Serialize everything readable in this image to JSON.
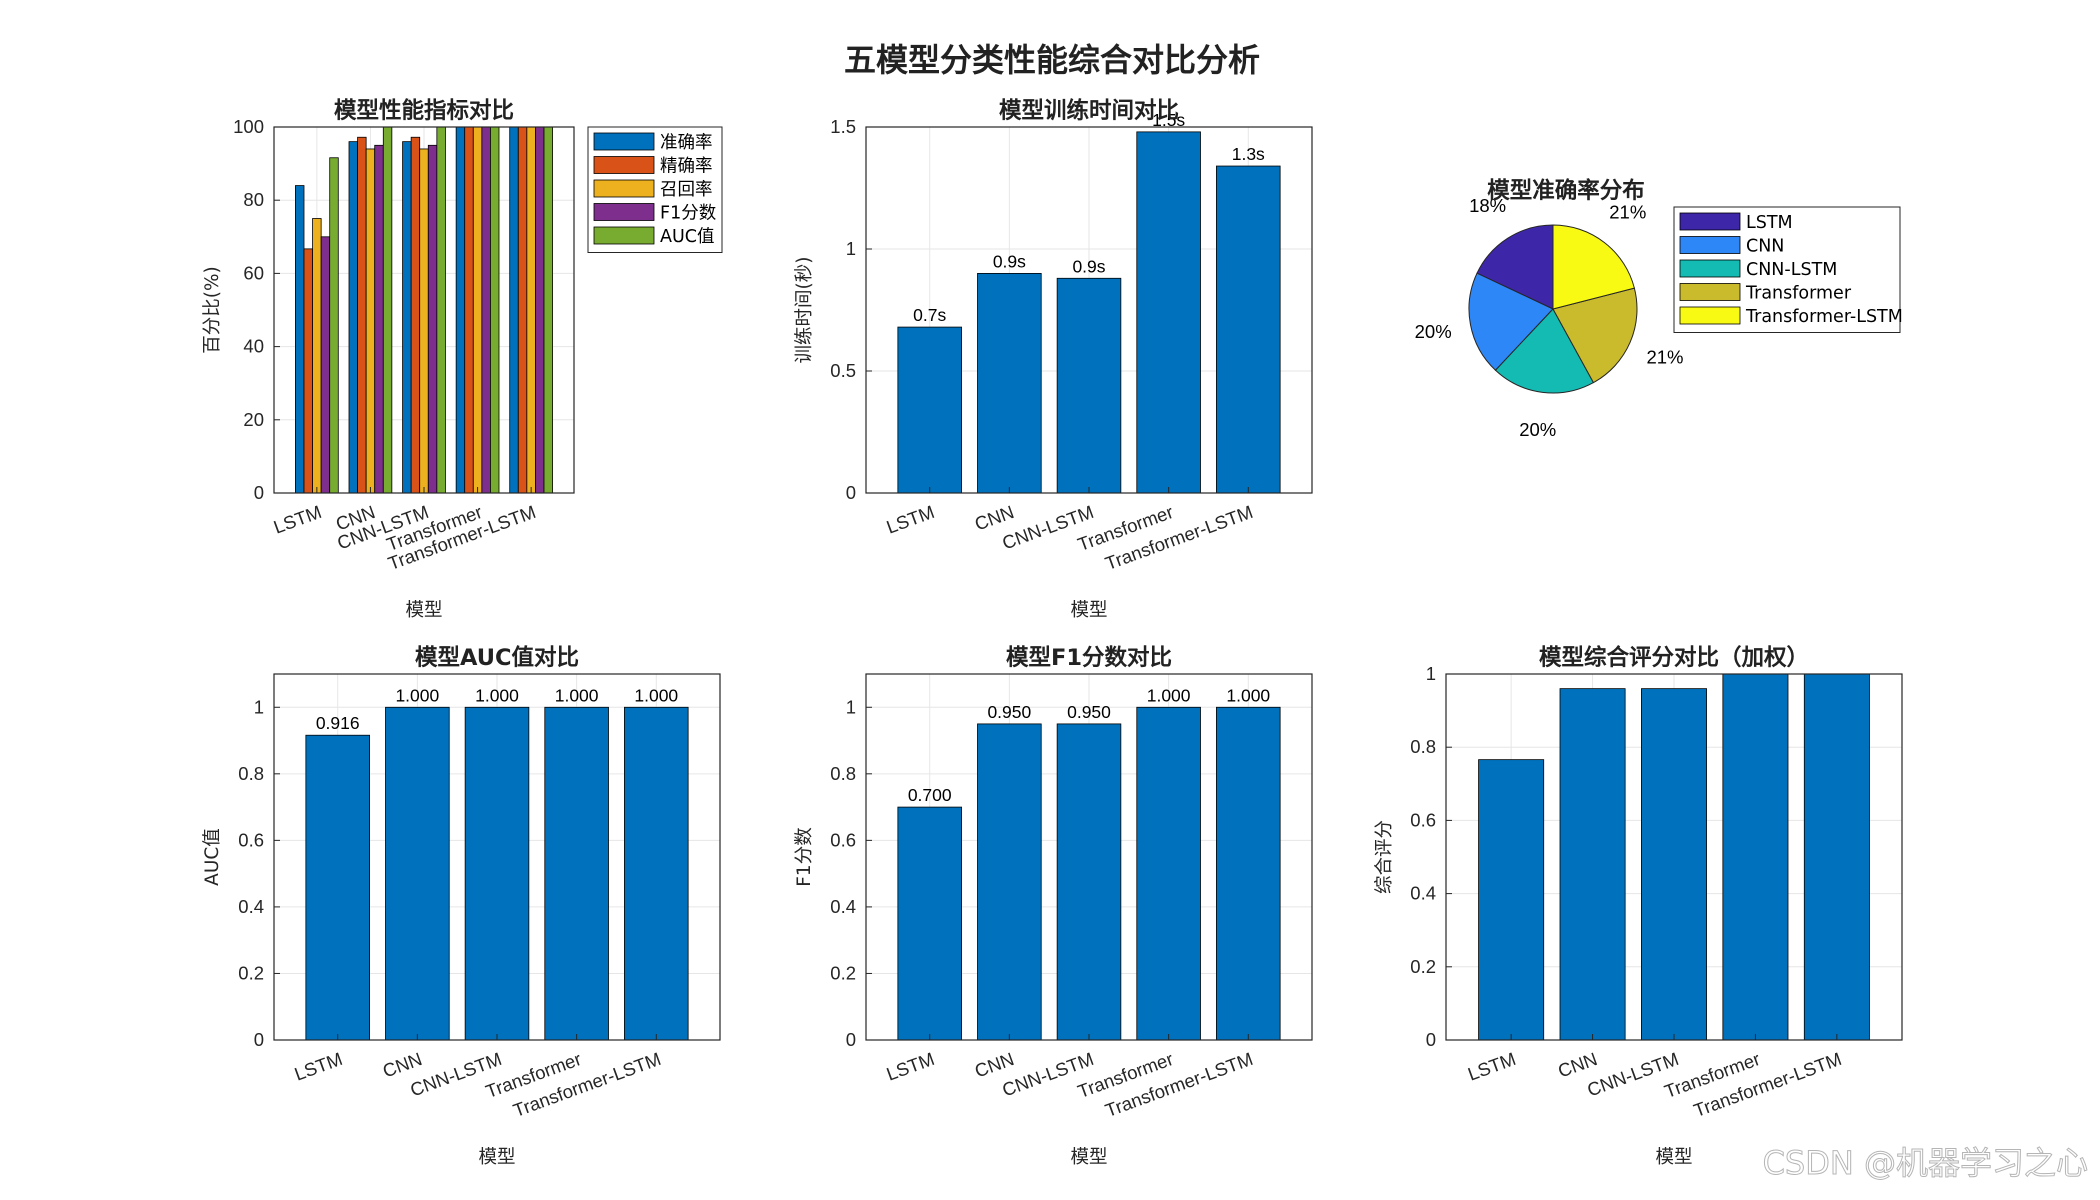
{
  "suptitle": "五模型分类性能综合对比分析",
  "watermark": "CSDN @机器学习之心",
  "chart_data": [
    {
      "type": "bar",
      "title": "模型性能指标对比",
      "xlabel": "模型",
      "ylabel": "百分比(%)",
      "ylim": [
        0,
        100
      ],
      "yticks": [
        0,
        20,
        40,
        60,
        80,
        100
      ],
      "categories": [
        "LSTM",
        "CNN",
        "CNN-LSTM",
        "Transformer",
        "Transformer-LSTM"
      ],
      "legend_position": "outside-top-right",
      "series": [
        {
          "name": "准确率",
          "color": "#0072BD",
          "values": [
            84,
            96,
            96,
            100,
            100
          ]
        },
        {
          "name": "精确率",
          "color": "#D95319",
          "values": [
            66.7,
            97.2,
            97.2,
            100,
            100
          ]
        },
        {
          "name": "召回率",
          "color": "#EDB120",
          "values": [
            75,
            94,
            94,
            100,
            100
          ]
        },
        {
          "name": "F1分数",
          "color": "#7E2F8E",
          "values": [
            70,
            95,
            95,
            100,
            100
          ]
        },
        {
          "name": "AUC值",
          "color": "#77AC30",
          "values": [
            91.6,
            100,
            100,
            100,
            100
          ]
        }
      ],
      "grid": true
    },
    {
      "type": "bar",
      "title": "模型训练时间对比",
      "xlabel": "",
      "xlabel_under": "模型",
      "ylabel": "训练时间(秒)",
      "ylim": [
        0,
        1.5
      ],
      "yticks": [
        0,
        0.5,
        1,
        1.5
      ],
      "categories": [
        "LSTM",
        "CNN",
        "CNN-LSTM",
        "Transformer",
        "Transformer-LSTM"
      ],
      "values": [
        0.68,
        0.9,
        0.88,
        1.48,
        1.34
      ],
      "data_labels": [
        "0.7s",
        "0.9s",
        "0.9s",
        "1.5s",
        "1.3s"
      ],
      "color": "#0072BD",
      "grid": true
    },
    {
      "type": "pie",
      "title": "模型准确率分布",
      "labels": [
        "LSTM",
        "CNN",
        "CNN-LSTM",
        "Transformer",
        "Transformer-LSTM"
      ],
      "values": [
        18,
        20,
        20,
        21,
        21
      ],
      "percent_labels": [
        "18%",
        "20%",
        "20%",
        "21%",
        "21%"
      ],
      "colors": [
        "#3E26A8",
        "#2E87F7",
        "#14BBB2",
        "#CABB2C",
        "#F9FA14"
      ],
      "legend_position": "right"
    },
    {
      "type": "bar",
      "title": "模型AUC值对比",
      "xlabel": "模型",
      "ylabel": "AUC值",
      "ylim": [
        0,
        1.1
      ],
      "yticks": [
        0,
        0.2,
        0.4,
        0.6,
        0.8,
        1
      ],
      "categories": [
        "LSTM",
        "CNN",
        "CNN-LSTM",
        "Transformer",
        "Transformer-LSTM"
      ],
      "values": [
        0.916,
        1.0,
        1.0,
        1.0,
        1.0
      ],
      "data_labels": [
        "0.916",
        "1.000",
        "1.000",
        "1.000",
        "1.000"
      ],
      "color": "#0072BD",
      "grid": true
    },
    {
      "type": "bar",
      "title": "模型F1分数对比",
      "xlabel": "模型",
      "ylabel": "F1分数",
      "ylim": [
        0,
        1.1
      ],
      "yticks": [
        0,
        0.2,
        0.4,
        0.6,
        0.8,
        1
      ],
      "categories": [
        "LSTM",
        "CNN",
        "CNN-LSTM",
        "Transformer",
        "Transformer-LSTM"
      ],
      "values": [
        0.7,
        0.95,
        0.95,
        1.0,
        1.0
      ],
      "data_labels": [
        "0.700",
        "0.950",
        "0.950",
        "1.000",
        "1.000"
      ],
      "color": "#0072BD",
      "grid": true
    },
    {
      "type": "bar",
      "title": "模型综合评分对比（加权）",
      "xlabel": "模型",
      "ylabel": "综合评分",
      "ylim": [
        0,
        1
      ],
      "yticks": [
        0,
        0.2,
        0.4,
        0.6,
        0.8,
        1
      ],
      "categories": [
        "LSTM",
        "CNN",
        "CNN-LSTM",
        "Transformer",
        "Transformer-LSTM"
      ],
      "values": [
        0.766,
        0.96,
        0.96,
        1.0,
        1.0
      ],
      "color": "#0072BD",
      "grid": true
    }
  ]
}
